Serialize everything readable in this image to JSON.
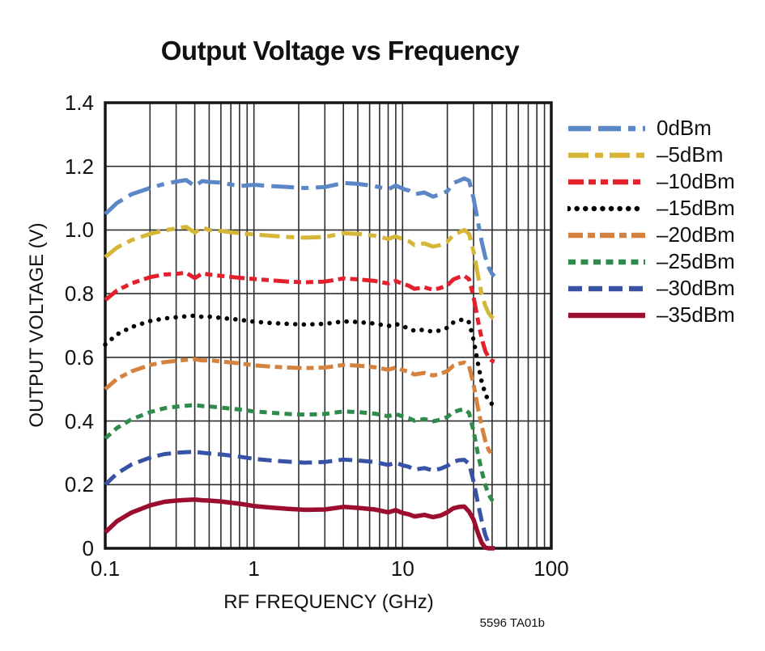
{
  "title": "Output Voltage vs Frequency",
  "footnote": "5596 TA01b",
  "colors": {
    "background": "#ffffff",
    "grid": "#2d2d2d",
    "frame": "#161616",
    "text": "#111111"
  },
  "chart_data": {
    "type": "line",
    "title": "Output Voltage vs Frequency",
    "xlabel": "RF FREQUENCY (GHz)",
    "ylabel": "OUTPUT VOLTAGE (V)",
    "x_scale": "log",
    "xlim": [
      0.1,
      100
    ],
    "ylim": [
      0,
      1.4
    ],
    "grid": true,
    "legend_position": "right",
    "x_ticks": [
      {
        "value": 0.1,
        "label": "0.1"
      },
      {
        "value": 1,
        "label": "1"
      },
      {
        "value": 10,
        "label": "10"
      },
      {
        "value": 100,
        "label": "100"
      }
    ],
    "y_ticks": [
      {
        "value": 1.4,
        "label": "1.4"
      },
      {
        "value": 1.2,
        "label": "1.2"
      },
      {
        "value": 1.0,
        "label": "1.0"
      },
      {
        "value": 0.8,
        "label": "0.8"
      },
      {
        "value": 0.6,
        "label": "0.6"
      },
      {
        "value": 0.4,
        "label": "0.4"
      },
      {
        "value": 0.2,
        "label": "0.2"
      },
      {
        "value": 0,
        "label": "0"
      }
    ],
    "x": [
      0.1,
      0.12,
      0.15,
      0.2,
      0.25,
      0.3,
      0.35,
      0.4,
      0.45,
      0.5,
      0.6,
      0.8,
      1.0,
      1.3,
      1.7,
      2.2,
      3.0,
      4.0,
      5.0,
      6.5,
      8.0,
      9.0,
      10,
      11,
      12,
      14,
      16,
      18,
      20,
      22,
      24,
      26,
      28,
      30,
      32,
      34,
      36,
      38,
      40,
      41.5
    ],
    "series": [
      {
        "name": "0dBm",
        "color": "#5b87c6",
        "dash": "28 9 28 9 9 9",
        "linecap": "butt",
        "width": 5,
        "values": [
          1.05,
          1.085,
          1.112,
          1.132,
          1.145,
          1.152,
          1.157,
          1.138,
          1.154,
          1.151,
          1.149,
          1.138,
          1.142,
          1.138,
          1.135,
          1.132,
          1.135,
          1.148,
          1.145,
          1.138,
          1.128,
          1.14,
          1.13,
          1.124,
          1.112,
          1.118,
          1.105,
          1.112,
          1.122,
          1.148,
          1.155,
          1.162,
          1.155,
          1.1,
          1.03,
          0.965,
          0.915,
          0.882,
          0.862,
          0.855
        ]
      },
      {
        "name": "–5dBm",
        "color": "#d5b637",
        "dash": "25 8 10 8",
        "linecap": "butt",
        "width": 5,
        "values": [
          0.915,
          0.945,
          0.968,
          0.988,
          0.999,
          1.005,
          1.01,
          0.992,
          1.008,
          1.0,
          0.997,
          0.99,
          0.986,
          0.982,
          0.978,
          0.976,
          0.978,
          0.99,
          0.988,
          0.982,
          0.972,
          0.98,
          0.971,
          0.965,
          0.953,
          0.958,
          0.948,
          0.953,
          0.963,
          0.985,
          0.993,
          1.0,
          0.988,
          0.932,
          0.862,
          0.8,
          0.762,
          0.738,
          0.725,
          0.72
        ]
      },
      {
        "name": "–10dBm",
        "color": "#e4202c",
        "dash": "19 6 9 6 9 6",
        "linecap": "butt",
        "width": 5,
        "values": [
          0.78,
          0.81,
          0.832,
          0.852,
          0.86,
          0.862,
          0.866,
          0.849,
          0.864,
          0.86,
          0.856,
          0.85,
          0.846,
          0.842,
          0.838,
          0.836,
          0.838,
          0.848,
          0.845,
          0.84,
          0.832,
          0.84,
          0.831,
          0.825,
          0.815,
          0.82,
          0.812,
          0.818,
          0.826,
          0.845,
          0.852,
          0.856,
          0.845,
          0.79,
          0.72,
          0.66,
          0.62,
          0.598,
          0.589,
          0.587
        ]
      },
      {
        "name": "–15dBm",
        "color": "#000000",
        "dash": "0.1 10.5",
        "linecap": "round",
        "width": 5.5,
        "values": [
          0.64,
          0.672,
          0.695,
          0.714,
          0.722,
          0.726,
          0.729,
          0.731,
          0.727,
          0.728,
          0.724,
          0.718,
          0.712,
          0.708,
          0.705,
          0.703,
          0.705,
          0.713,
          0.711,
          0.706,
          0.698,
          0.705,
          0.697,
          0.692,
          0.683,
          0.687,
          0.68,
          0.685,
          0.693,
          0.71,
          0.716,
          0.72,
          0.71,
          0.655,
          0.585,
          0.525,
          0.485,
          0.462,
          0.453,
          0.452
        ]
      },
      {
        "name": "–20dBm",
        "color": "#d5823f",
        "dash": "18 6 9 6",
        "linecap": "butt",
        "width": 5,
        "values": [
          0.5,
          0.532,
          0.556,
          0.576,
          0.585,
          0.589,
          0.592,
          0.594,
          0.59,
          0.591,
          0.587,
          0.581,
          0.575,
          0.571,
          0.568,
          0.566,
          0.568,
          0.576,
          0.574,
          0.569,
          0.561,
          0.568,
          0.56,
          0.555,
          0.546,
          0.551,
          0.543,
          0.548,
          0.557,
          0.574,
          0.58,
          0.584,
          0.572,
          0.515,
          0.445,
          0.385,
          0.338,
          0.308,
          0.294,
          0.292
        ]
      },
      {
        "name": "–25dBm",
        "color": "#2f8b4b",
        "dash": "9 6.5",
        "linecap": "butt",
        "width": 5,
        "values": [
          0.345,
          0.378,
          0.405,
          0.428,
          0.44,
          0.445,
          0.448,
          0.45,
          0.447,
          0.446,
          0.442,
          0.436,
          0.43,
          0.426,
          0.422,
          0.42,
          0.422,
          0.43,
          0.428,
          0.423,
          0.415,
          0.422,
          0.414,
          0.409,
          0.401,
          0.406,
          0.399,
          0.404,
          0.413,
          0.428,
          0.434,
          0.437,
          0.425,
          0.368,
          0.3,
          0.245,
          0.198,
          0.168,
          0.151,
          0.147
        ]
      },
      {
        "name": "–30dBm",
        "color": "#3853a6",
        "dash": "17 8",
        "linecap": "butt",
        "width": 5,
        "values": [
          0.2,
          0.235,
          0.263,
          0.285,
          0.296,
          0.3,
          0.302,
          0.303,
          0.3,
          0.298,
          0.295,
          0.288,
          0.281,
          0.276,
          0.272,
          0.269,
          0.271,
          0.279,
          0.276,
          0.271,
          0.262,
          0.269,
          0.261,
          0.256,
          0.247,
          0.252,
          0.245,
          0.25,
          0.259,
          0.272,
          0.277,
          0.278,
          0.265,
          0.21,
          0.145,
          0.088,
          0.042,
          0.014,
          0.002,
          0.0
        ]
      },
      {
        "name": "–35dBm",
        "color": "#9c0e2f",
        "dash": null,
        "linecap": "butt",
        "width": 5.5,
        "values": [
          0.05,
          0.085,
          0.112,
          0.135,
          0.146,
          0.15,
          0.152,
          0.153,
          0.151,
          0.15,
          0.147,
          0.14,
          0.133,
          0.128,
          0.124,
          0.121,
          0.122,
          0.13,
          0.127,
          0.122,
          0.113,
          0.12,
          0.111,
          0.107,
          0.1,
          0.105,
          0.098,
          0.103,
          0.113,
          0.126,
          0.13,
          0.131,
          0.115,
          0.09,
          0.05,
          0.018,
          0.002,
          0.0,
          0.0,
          0.0
        ]
      }
    ]
  }
}
